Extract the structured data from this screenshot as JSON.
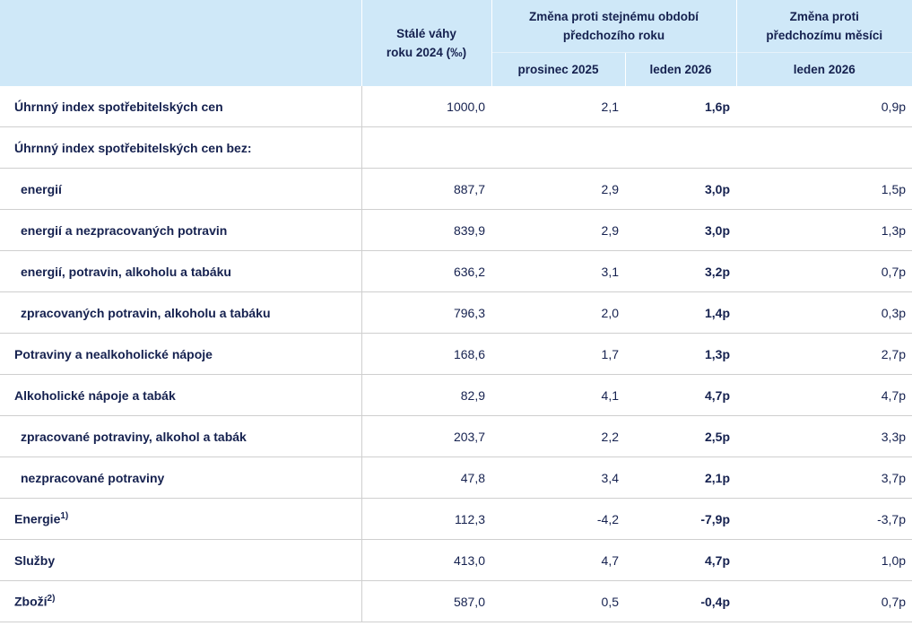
{
  "table": {
    "header": {
      "weights": [
        "Stálé váhy",
        "roku 2024 (‰)"
      ],
      "yoy": [
        "Změna proti stejnému období",
        "předchozího roku"
      ],
      "mom": [
        "Změna proti",
        "předchozímu měsíci"
      ],
      "columns": [
        "prosinec 2025",
        "leden 2026",
        "leden 2026"
      ]
    },
    "rows": [
      {
        "label": "Úhrnný index spotřebitelských cen",
        "values": [
          "1000,0",
          "2,1",
          "1,6p",
          "0,9p"
        ]
      },
      {
        "label": "Úhrnný index spotřebitelských cen bez:"
      },
      {
        "label": "energií",
        "values": [
          "887,7",
          "2,9",
          "3,0p",
          "1,5p"
        ]
      },
      {
        "label": "energií a nezpracovaných potravin",
        "values": [
          "839,9",
          "2,9",
          "3,0p",
          "1,3p"
        ]
      },
      {
        "label": "energií, potravin, alkoholu a tabáku",
        "values": [
          "636,2",
          "3,1",
          "3,2p",
          "0,7p"
        ]
      },
      {
        "label": "zpracovaných potravin, alkoholu a tabáku",
        "values": [
          "796,3",
          "2,0",
          "1,4p",
          "0,3p"
        ]
      },
      {
        "label": "Potraviny a nealkoholické nápoje",
        "values": [
          "168,6",
          "1,7",
          "1,3p",
          "2,7p"
        ]
      },
      {
        "label": "Alkoholické nápoje a tabák",
        "values": [
          "82,9",
          "4,1",
          "4,7p",
          "4,7p"
        ]
      },
      {
        "label": "zpracované potraviny, alkohol a tabák",
        "values": [
          "203,7",
          "2,2",
          "2,5p",
          "3,3p"
        ]
      },
      {
        "label": "nezpracované potraviny",
        "values": [
          "47,8",
          "3,4",
          "2,1p",
          "3,7p"
        ]
      },
      {
        "label": "Energie",
        "note": "1)",
        "values": [
          "112,3",
          "-4,2",
          "-7,9p",
          "-3,7p"
        ]
      },
      {
        "label": "Služby",
        "values": [
          "413,0",
          "4,7",
          "4,7p",
          "1,0p"
        ]
      },
      {
        "label": "Zboží",
        "note": "2)",
        "values": [
          "587,0",
          "0,5",
          "-0,4p",
          "0,7p"
        ]
      }
    ]
  }
}
